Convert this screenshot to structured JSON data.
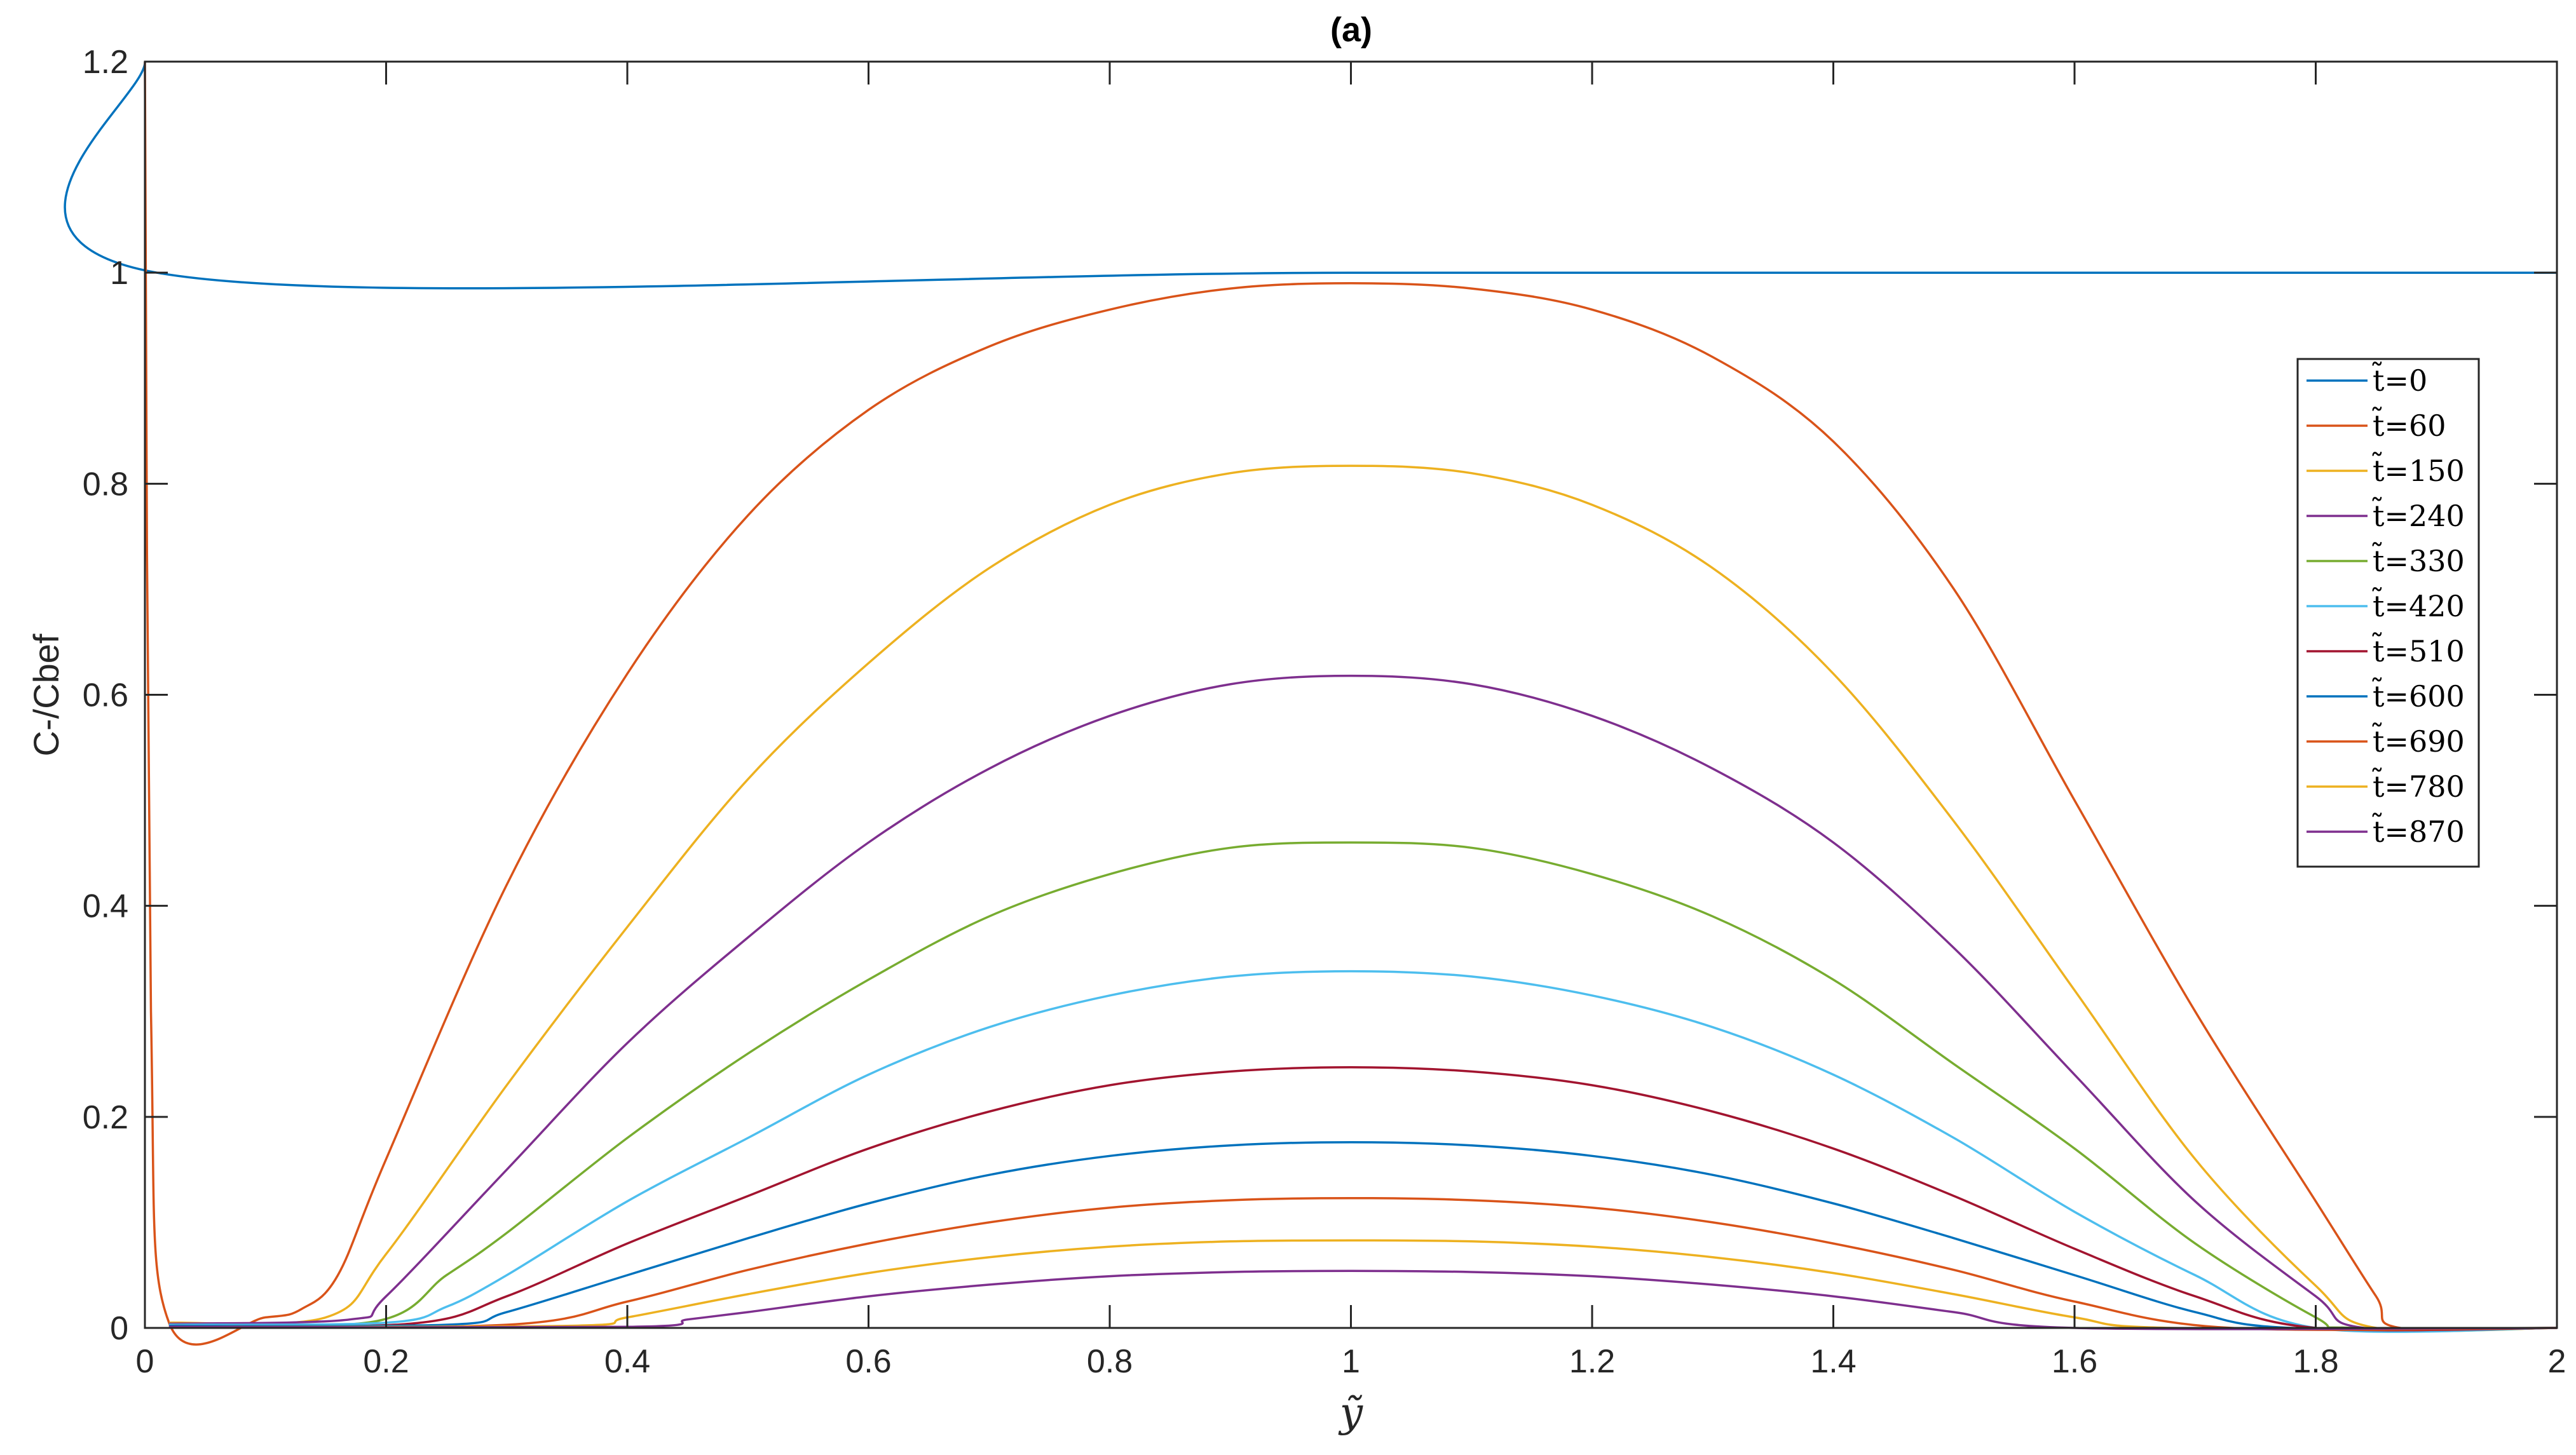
{
  "chart_data": {
    "type": "line",
    "title": "(a)",
    "xlabel": "ỹ",
    "ylabel": "C-/Cbef",
    "xlim": [
      0,
      2
    ],
    "ylim": [
      0,
      1.2
    ],
    "xticks": [
      0,
      0.2,
      0.4,
      0.6,
      0.8,
      1,
      1.2,
      1.4,
      1.6,
      1.8,
      2
    ],
    "xtick_labels": [
      "0",
      "0.2",
      "0.4",
      "0.6",
      "0.8",
      "1",
      "1.2",
      "1.4",
      "1.6",
      "1.8",
      "2"
    ],
    "yticks": [
      0,
      0.2,
      0.4,
      0.6,
      0.8,
      1,
      1.2
    ],
    "ytick_labels": [
      "0",
      "0.2",
      "0.4",
      "0.6",
      "0.8",
      "1",
      "1.2"
    ],
    "grid": false,
    "legend_position": "right",
    "colors": [
      "#0072BD",
      "#D95319",
      "#EDB120",
      "#7E2F8E",
      "#77AC30",
      "#4DBEEE",
      "#A2142F",
      "#0072BD",
      "#D95319",
      "#EDB120",
      "#7E2F8E"
    ],
    "series": [
      {
        "name": "t̃=0",
        "x": [
          0,
          0.01,
          1,
          2
        ],
        "y": [
          1.2,
          1,
          1,
          1
        ]
      },
      {
        "name": "t̃=60",
        "x": [
          0,
          0.005,
          0.02,
          0.1,
          0.13,
          0.16,
          0.2,
          0.3,
          0.4,
          0.5,
          0.6,
          0.7,
          0.8,
          0.9,
          1,
          1.1,
          1.2,
          1.3,
          1.4,
          1.5,
          1.6,
          1.7,
          1.8,
          1.85,
          1.87,
          2
        ],
        "y": [
          1.2,
          0.3,
          0.005,
          0.01,
          0.018,
          0.05,
          0.16,
          0.42,
          0.62,
          0.77,
          0.87,
          0.93,
          0.965,
          0.985,
          0.99,
          0.985,
          0.965,
          0.92,
          0.84,
          0.7,
          0.5,
          0.3,
          0.12,
          0.03,
          0,
          0
        ]
      },
      {
        "name": "t̃=150",
        "x": [
          0.02,
          0.15,
          0.2,
          0.3,
          0.4,
          0.5,
          0.6,
          0.7,
          0.8,
          0.9,
          1,
          1.1,
          1.2,
          1.3,
          1.4,
          1.5,
          1.6,
          1.7,
          1.8,
          1.85,
          2
        ],
        "y": [
          0.005,
          0.01,
          0.07,
          0.23,
          0.38,
          0.52,
          0.63,
          0.72,
          0.78,
          0.81,
          0.817,
          0.81,
          0.78,
          0.72,
          0.62,
          0.48,
          0.32,
          0.16,
          0.04,
          0,
          0
        ]
      },
      {
        "name": "t̃=240",
        "x": [
          0.02,
          0.17,
          0.2,
          0.3,
          0.4,
          0.5,
          0.6,
          0.7,
          0.8,
          0.9,
          1,
          1.1,
          1.2,
          1.3,
          1.4,
          1.5,
          1.6,
          1.7,
          1.8,
          1.84,
          2
        ],
        "y": [
          0.004,
          0.008,
          0.03,
          0.15,
          0.27,
          0.37,
          0.46,
          0.53,
          0.58,
          0.61,
          0.618,
          0.61,
          0.58,
          0.53,
          0.46,
          0.36,
          0.24,
          0.12,
          0.03,
          0,
          0
        ]
      },
      {
        "name": "t̃=330",
        "x": [
          0.02,
          0.19,
          0.25,
          0.3,
          0.4,
          0.5,
          0.6,
          0.7,
          0.8,
          0.9,
          1,
          1.1,
          1.2,
          1.3,
          1.4,
          1.5,
          1.6,
          1.7,
          1.8,
          1.83,
          2
        ],
        "y": [
          0.003,
          0.006,
          0.05,
          0.09,
          0.18,
          0.26,
          0.33,
          0.39,
          0.43,
          0.455,
          0.46,
          0.455,
          0.43,
          0.39,
          0.33,
          0.25,
          0.17,
          0.08,
          0.01,
          0,
          0
        ]
      },
      {
        "name": "t̃=420",
        "x": [
          0.02,
          0.2,
          0.25,
          0.3,
          0.4,
          0.5,
          0.6,
          0.7,
          0.8,
          0.9,
          1,
          1.1,
          1.2,
          1.3,
          1.4,
          1.5,
          1.6,
          1.7,
          1.8,
          2
        ],
        "y": [
          0.003,
          0.005,
          0.02,
          0.05,
          0.12,
          0.18,
          0.24,
          0.285,
          0.315,
          0.333,
          0.338,
          0.333,
          0.315,
          0.285,
          0.24,
          0.18,
          0.11,
          0.05,
          0,
          0
        ]
      },
      {
        "name": "t̃=510",
        "x": [
          0.02,
          0.22,
          0.3,
          0.4,
          0.5,
          0.6,
          0.7,
          0.8,
          0.9,
          1,
          1.1,
          1.2,
          1.3,
          1.4,
          1.5,
          1.6,
          1.7,
          1.8,
          2
        ],
        "y": [
          0.002,
          0.004,
          0.03,
          0.08,
          0.125,
          0.17,
          0.205,
          0.23,
          0.243,
          0.247,
          0.243,
          0.23,
          0.205,
          0.17,
          0.125,
          0.075,
          0.03,
          0,
          0
        ]
      },
      {
        "name": "t̃=600",
        "x": [
          0.02,
          0.25,
          0.3,
          0.4,
          0.5,
          0.6,
          0.7,
          0.8,
          0.9,
          1,
          1.1,
          1.2,
          1.3,
          1.4,
          1.5,
          1.6,
          1.7,
          1.78,
          2
        ],
        "y": [
          0.002,
          0.003,
          0.015,
          0.05,
          0.085,
          0.118,
          0.145,
          0.163,
          0.173,
          0.176,
          0.173,
          0.163,
          0.145,
          0.118,
          0.085,
          0.05,
          0.015,
          0,
          0
        ]
      },
      {
        "name": "t̃=690",
        "x": [
          0.02,
          0.3,
          0.4,
          0.5,
          0.6,
          0.7,
          0.8,
          0.9,
          1,
          1.1,
          1.2,
          1.3,
          1.4,
          1.5,
          1.6,
          1.73,
          2
        ],
        "y": [
          0.001,
          0.003,
          0.025,
          0.055,
          0.08,
          0.1,
          0.114,
          0.121,
          0.123,
          0.121,
          0.114,
          0.1,
          0.08,
          0.055,
          0.025,
          0,
          0
        ]
      },
      {
        "name": "t̃=780",
        "x": [
          0.02,
          0.35,
          0.4,
          0.5,
          0.6,
          0.7,
          0.8,
          0.9,
          1,
          1.1,
          1.2,
          1.3,
          1.4,
          1.5,
          1.6,
          1.68,
          2
        ],
        "y": [
          0.001,
          0.002,
          0.01,
          0.032,
          0.052,
          0.067,
          0.077,
          0.082,
          0.083,
          0.082,
          0.077,
          0.067,
          0.052,
          0.032,
          0.01,
          0,
          0
        ]
      },
      {
        "name": "t̃=870",
        "x": [
          0.02,
          0.4,
          0.45,
          0.5,
          0.6,
          0.7,
          0.8,
          0.9,
          1,
          1.1,
          1.2,
          1.3,
          1.4,
          1.5,
          1.6,
          2
        ],
        "y": [
          0.001,
          0.001,
          0.008,
          0.015,
          0.03,
          0.041,
          0.049,
          0.053,
          0.054,
          0.053,
          0.049,
          0.041,
          0.03,
          0.015,
          0,
          0
        ]
      }
    ]
  }
}
